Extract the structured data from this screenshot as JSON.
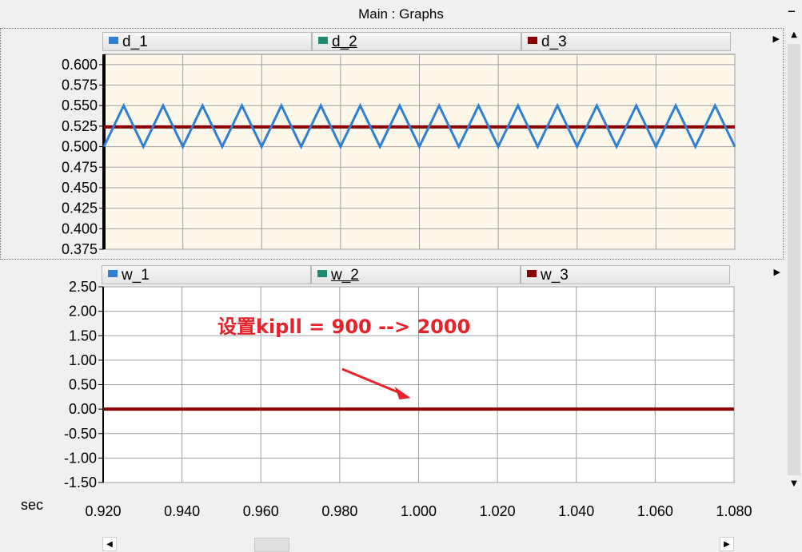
{
  "window": {
    "title": "Main : Graphs",
    "minimize_icon": "minus-icon"
  },
  "colors": {
    "d_1": "#2f7fd3",
    "d_2": "#1e8a72",
    "d_3": "#8b0000",
    "plot1_bg": "#fdf8ea",
    "plot2_bg": "#ffffff",
    "grid": "#a0a0a0",
    "annotation": "#e8222b"
  },
  "chart_data": [
    {
      "type": "line",
      "legend": [
        {
          "name": "d_1",
          "color": "#2f7fd3"
        },
        {
          "name": "d_2",
          "color": "#1e8a72"
        },
        {
          "name": "d_3",
          "color": "#8b0000"
        }
      ],
      "xlim": [
        0.92,
        1.08
      ],
      "ylim": [
        0.375,
        0.6125
      ],
      "yticks": [
        "0.600",
        "0.575",
        "0.550",
        "0.525",
        "0.500",
        "0.475",
        "0.450",
        "0.425",
        "0.400",
        "0.375"
      ],
      "series": [
        {
          "name": "d_1",
          "shape": "triangle wave",
          "min": 0.5,
          "max": 0.55,
          "period": 0.01,
          "first_peak_x": 0.925
        },
        {
          "name": "d_3",
          "constant": 0.524
        }
      ]
    },
    {
      "type": "line",
      "legend": [
        {
          "name": "w_1",
          "color": "#2f7fd3"
        },
        {
          "name": "w_2",
          "color": "#1e8a72"
        },
        {
          "name": "w_3",
          "color": "#8b0000"
        }
      ],
      "xlim": [
        0.92,
        1.08
      ],
      "ylim": [
        -1.5,
        2.5
      ],
      "yticks": [
        "2.50",
        "2.00",
        "1.50",
        "1.00",
        "0.50",
        "0.00",
        "-0.50",
        "-1.00",
        "-1.50"
      ],
      "series": [
        {
          "name": "w_3",
          "constant": 0.0
        }
      ],
      "annotation": {
        "text": "设置kipll = 900 --> 2000",
        "arrow_to_x": 1.0,
        "arrow_to_y": 0.0
      }
    }
  ],
  "x_axis": {
    "unit_label": "sec",
    "ticks": [
      "0.920",
      "0.940",
      "0.960",
      "0.980",
      "1.000",
      "1.020",
      "1.040",
      "1.060",
      "1.080"
    ]
  }
}
